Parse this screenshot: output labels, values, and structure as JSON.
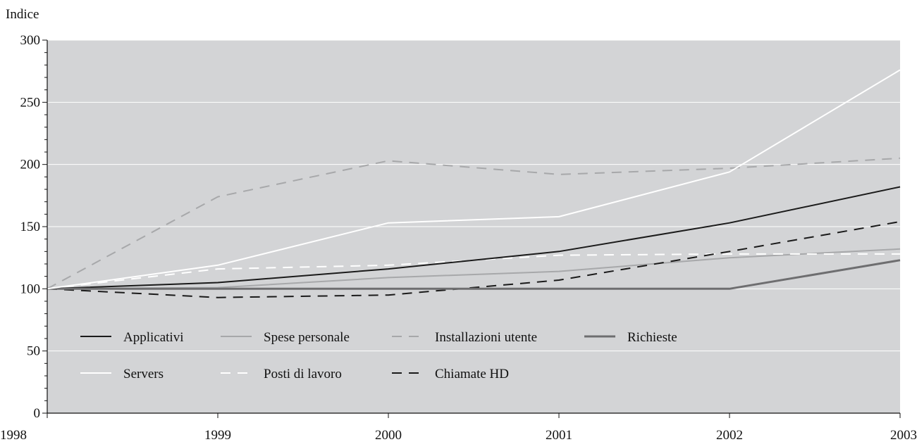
{
  "chart_data": {
    "type": "line",
    "title": "",
    "xlabel": "",
    "ylabel": "Indice",
    "x": [
      1998,
      1999,
      2000,
      2001,
      2002,
      2003
    ],
    "x_tick_labels": [
      "1998",
      "1999",
      "2000",
      "2001",
      "2002",
      "2003"
    ],
    "xlim": [
      1998,
      2003
    ],
    "ylim": [
      0,
      300
    ],
    "y_ticks": [
      0,
      50,
      100,
      150,
      200,
      250,
      300
    ],
    "y_tick_labels": [
      "0",
      "50",
      "100",
      "150",
      "200",
      "250",
      "300"
    ],
    "grid": true,
    "legend_position": "bottom-left inside",
    "background_color": "#d3d4d6",
    "series": [
      {
        "name": "Applicativi",
        "values": [
          100,
          105,
          116,
          130,
          153,
          182
        ],
        "color": "#1a1a1a",
        "style": "solid",
        "width": 2
      },
      {
        "name": "Spese personale",
        "values": [
          100,
          101,
          109,
          114,
          125,
          132
        ],
        "color": "#a7a8aa",
        "style": "solid",
        "width": 2
      },
      {
        "name": "Installazioni utente",
        "values": [
          100,
          174,
          203,
          192,
          197,
          205
        ],
        "color": "#a7a8aa",
        "style": "dashed",
        "width": 2
      },
      {
        "name": "Richieste",
        "values": [
          100,
          100,
          100,
          100,
          100,
          123
        ],
        "color": "#6e6e70",
        "style": "solid",
        "width": 3
      },
      {
        "name": "Servers",
        "values": [
          100,
          119,
          153,
          158,
          194,
          276
        ],
        "color": "#ffffff",
        "style": "solid",
        "width": 2
      },
      {
        "name": "Posti di lavoro",
        "values": [
          100,
          116,
          119,
          127,
          128,
          128
        ],
        "color": "#ffffff",
        "style": "dashed",
        "width": 2
      },
      {
        "name": "Chiamate HD",
        "values": [
          100,
          93,
          95,
          107,
          130,
          154
        ],
        "color": "#1a1a1a",
        "style": "dashed",
        "width": 2
      }
    ]
  }
}
